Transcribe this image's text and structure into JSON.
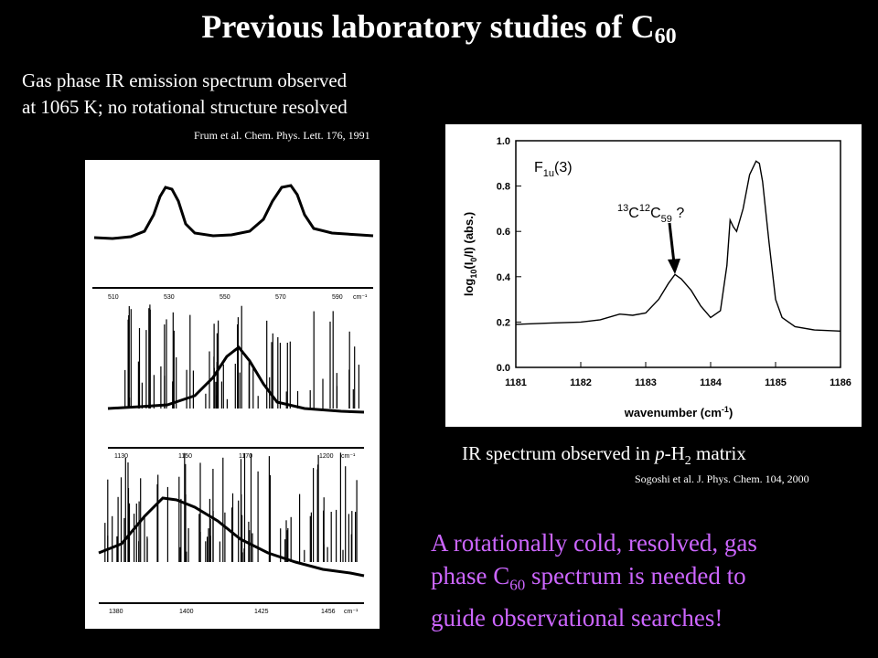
{
  "title": {
    "text": "Previous laboratory studies of C",
    "sub": "60"
  },
  "left": {
    "caption_line1": "Gas phase IR emission spectrum observed",
    "caption_line2": "at 1065 K; no rotational structure resolved",
    "reference": "Frum et al. Chem. Phys. Lett. 176, 1991",
    "panel1_ticks": [
      "510",
      "530",
      "550",
      "570",
      "590"
    ],
    "panel1_unit": "cm⁻¹",
    "panel2_ticks": [
      "1130",
      "1150",
      "1170",
      "1200"
    ],
    "panel2_unit": "cm⁻¹",
    "panel3_ticks": [
      "1380",
      "1400",
      "1425",
      "1456"
    ],
    "panel3_unit": "cm⁻¹"
  },
  "right": {
    "caption_prefix": "IR spectrum observed in ",
    "caption_italic": "p",
    "caption_mid": "-H",
    "caption_sub": "2",
    "caption_suffix": " matrix",
    "reference": "Sogoshi et al. J. Phys. Chem. 104, 2000"
  },
  "chart_data": {
    "type": "line",
    "title": "",
    "xlabel": "wavenumber (cm-1)",
    "ylabel": "log10(I0/I) (abs.)",
    "xlim": [
      1181,
      1186
    ],
    "ylim": [
      0.0,
      1.0
    ],
    "x_ticks": [
      "1181",
      "1182",
      "1183",
      "1184",
      "1185",
      "1186"
    ],
    "y_ticks": [
      "0.0",
      "0.2",
      "0.4",
      "0.6",
      "0.8",
      "1.0"
    ],
    "annotations": [
      "F1u(3)",
      "13C12C59 ?"
    ],
    "series": [
      {
        "x": [
          1181.0,
          1181.5,
          1182.0,
          1182.3,
          1182.6,
          1182.8,
          1183.0,
          1183.2,
          1183.35,
          1183.45,
          1183.55,
          1183.7,
          1183.85,
          1184.0,
          1184.15,
          1184.25,
          1184.3,
          1184.35,
          1184.4,
          1184.5,
          1184.6,
          1184.7,
          1184.75,
          1184.8,
          1184.9,
          1185.0,
          1185.1,
          1185.3,
          1185.6,
          1186.0
        ],
        "y": [
          0.19,
          0.195,
          0.2,
          0.21,
          0.235,
          0.23,
          0.24,
          0.3,
          0.37,
          0.41,
          0.39,
          0.34,
          0.27,
          0.22,
          0.25,
          0.45,
          0.65,
          0.62,
          0.6,
          0.7,
          0.85,
          0.91,
          0.9,
          0.82,
          0.55,
          0.3,
          0.22,
          0.18,
          0.165,
          0.16
        ]
      }
    ]
  },
  "bottom_note": {
    "line1": "A rotationally cold, resolved, gas",
    "line2_prefix": "phase C",
    "line2_sub": "60",
    "line2_suffix": " spectrum is needed to",
    "line3": "guide observational searches!"
  }
}
